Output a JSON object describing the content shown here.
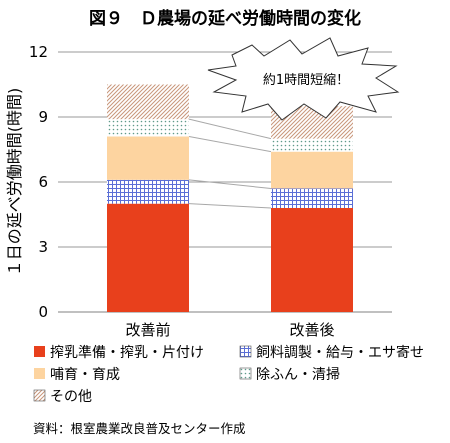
{
  "chart_data": {
    "type": "bar",
    "stacked": true,
    "title": "図９　Ｄ農場の延べ労働時間の変化",
    "ylabel": "１日の延べ労働時間(時間)",
    "xlabel": "",
    "ylim": [
      0,
      12
    ],
    "yticks": [
      "0",
      "3",
      "6",
      "9",
      "12"
    ],
    "grid": true,
    "legend_position": "bottom",
    "categories": [
      "改善前",
      "改善後"
    ],
    "series": [
      {
        "name": "搾乳準備・搾乳・片付け",
        "values": [
          5.0,
          4.8
        ],
        "color": "#e8401c",
        "pattern": "solid"
      },
      {
        "name": "飼料調製・給与・エサ寄せ",
        "values": [
          1.1,
          0.9
        ],
        "color": "#5b6fd6",
        "pattern": "grid"
      },
      {
        "name": "哺育・育成",
        "values": [
          2.0,
          1.7
        ],
        "color": "#fdd4a0",
        "pattern": "solid"
      },
      {
        "name": "除ふん・清掃",
        "values": [
          0.8,
          0.6
        ],
        "color": "#7fb0a0",
        "pattern": "dots"
      },
      {
        "name": "その他",
        "values": [
          1.6,
          1.5
        ],
        "color": "#c8967a",
        "pattern": "diagonal"
      }
    ],
    "annotation": "約1時間短縮！",
    "source": "資料：根室農業改良普及センター作成"
  }
}
